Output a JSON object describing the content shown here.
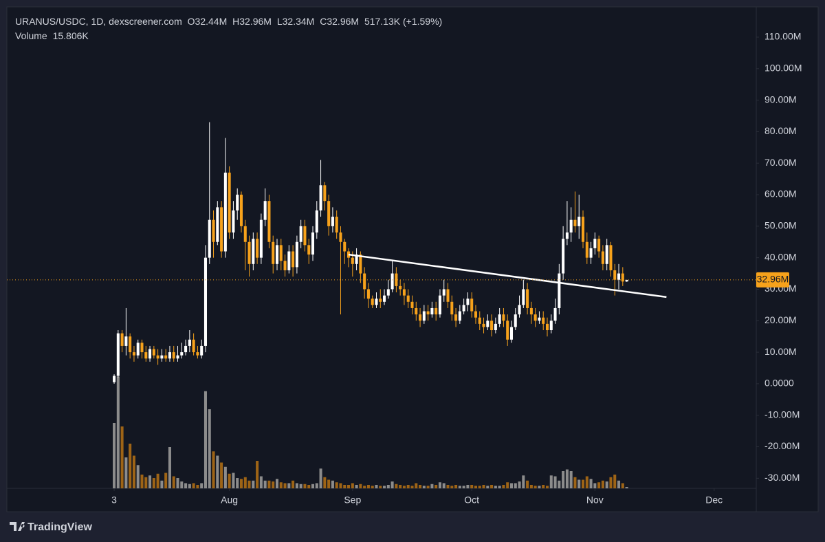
{
  "chart_data": {
    "type": "candlestick",
    "header": {
      "symbol": "URANUS/USDC, 1D, dexscreener.com",
      "o_label": "O",
      "o": "32.44M",
      "h_label": "H",
      "h": "32.96M",
      "l_label": "L",
      "l": "32.34M",
      "c_label": "C",
      "c": "32.96M",
      "change": "517.13K (+1.59%)",
      "volume_label": "Volume",
      "volume": "15.806K"
    },
    "open": [
      0.5,
      2.5,
      16,
      12,
      15,
      10,
      9,
      13,
      10,
      8,
      11,
      9,
      8,
      9,
      8,
      10,
      8,
      9,
      10,
      12,
      14,
      10,
      9,
      12,
      40,
      52,
      45,
      56,
      42,
      67,
      48,
      55,
      60,
      50,
      45,
      38,
      46,
      40,
      52,
      58,
      45,
      38,
      44,
      39,
      36,
      42,
      37,
      45,
      50,
      44,
      41,
      48,
      55,
      63,
      58,
      50,
      53,
      48,
      45,
      42,
      40,
      38,
      41,
      35,
      30,
      27,
      25,
      27,
      26,
      28,
      30,
      35,
      31,
      30,
      28,
      26,
      24,
      22,
      20,
      23,
      22,
      24,
      22,
      28,
      30,
      26,
      22,
      20,
      23,
      25,
      27,
      23,
      21,
      19,
      18,
      20,
      17,
      19,
      22,
      20,
      14,
      18,
      22,
      25,
      30,
      24,
      22,
      20,
      21,
      19,
      17,
      20,
      24,
      35,
      46,
      48,
      52,
      50,
      53,
      45,
      40,
      43,
      46,
      42,
      38,
      44,
      36,
      33,
      35,
      32.44
    ],
    "high": [
      3,
      17,
      17,
      24,
      16,
      12,
      14,
      14,
      12,
      12,
      12,
      11,
      11,
      11,
      12,
      12,
      12,
      13,
      14,
      17,
      16,
      12,
      14,
      44,
      83,
      55,
      58,
      58,
      78,
      69,
      58,
      62,
      61,
      52,
      47,
      48,
      48,
      54,
      62,
      60,
      47,
      46,
      46,
      41,
      44,
      44,
      47,
      52,
      52,
      46,
      50,
      58,
      71,
      64,
      60,
      56,
      55,
      50,
      46,
      43,
      42,
      43,
      42,
      37,
      32,
      28,
      29,
      30,
      30,
      33,
      39,
      37,
      33,
      32,
      30,
      28,
      26,
      24,
      25,
      25,
      26,
      26,
      30,
      33,
      32,
      28,
      24,
      25,
      27,
      29,
      29,
      25,
      23,
      21,
      22,
      22,
      21,
      24,
      24,
      22,
      20,
      24,
      28,
      33,
      32,
      26,
      24,
      23,
      23,
      21,
      22,
      27,
      38,
      50,
      58,
      56,
      61,
      60,
      55,
      48,
      45,
      48,
      47,
      44,
      46,
      45,
      38,
      38,
      37,
      32.96
    ],
    "low": [
      0,
      2,
      10,
      9,
      8,
      7,
      8,
      8,
      7,
      7,
      8,
      6,
      7,
      7,
      7,
      7,
      7,
      8,
      9,
      10,
      9,
      8,
      8,
      10,
      38,
      40,
      44,
      40,
      40,
      46,
      46,
      52,
      48,
      36,
      34,
      36,
      38,
      38,
      50,
      43,
      35,
      36,
      36,
      34,
      35,
      34,
      35,
      43,
      42,
      38,
      39,
      46,
      53,
      55,
      47,
      48,
      46,
      22,
      38,
      37,
      34,
      36,
      32,
      27,
      24,
      24,
      24,
      24,
      25,
      27,
      29,
      29,
      28,
      25,
      24,
      22,
      20,
      18,
      19,
      20,
      21,
      20,
      21,
      26,
      24,
      20,
      18,
      19,
      22,
      23,
      21,
      19,
      17,
      16,
      17,
      15,
      16,
      18,
      18,
      12,
      13,
      17,
      21,
      24,
      22,
      19,
      18,
      19,
      17,
      15,
      16,
      19,
      22,
      33,
      44,
      45,
      48,
      46,
      43,
      38,
      38,
      41,
      40,
      36,
      36,
      34,
      28,
      30,
      31,
      32.34
    ],
    "close": [
      2.5,
      16,
      12,
      15,
      10,
      9,
      13,
      10,
      8,
      11,
      9,
      8,
      9,
      8,
      10,
      8,
      9,
      10,
      12,
      14,
      10,
      9,
      12,
      40,
      52,
      45,
      56,
      42,
      67,
      48,
      55,
      60,
      50,
      45,
      38,
      46,
      40,
      52,
      58,
      45,
      38,
      44,
      39,
      36,
      42,
      37,
      45,
      50,
      44,
      41,
      48,
      55,
      63,
      58,
      50,
      53,
      48,
      45,
      42,
      40,
      38,
      41,
      35,
      30,
      27,
      25,
      27,
      26,
      28,
      30,
      35,
      31,
      30,
      28,
      26,
      24,
      22,
      20,
      23,
      22,
      24,
      22,
      28,
      30,
      26,
      22,
      20,
      23,
      25,
      27,
      23,
      21,
      19,
      18,
      20,
      17,
      19,
      22,
      20,
      14,
      18,
      22,
      25,
      30,
      24,
      22,
      20,
      21,
      19,
      17,
      20,
      24,
      35,
      46,
      48,
      52,
      50,
      53,
      45,
      40,
      43,
      46,
      42,
      38,
      44,
      36,
      33,
      35,
      32.44,
      32.96
    ],
    "volume": [
      760,
      1300,
      720,
      360,
      520,
      380,
      270,
      160,
      130,
      150,
      120,
      170,
      90,
      180,
      480,
      140,
      120,
      80,
      60,
      50,
      60,
      40,
      60,
      1130,
      920,
      430,
      380,
      300,
      250,
      170,
      180,
      120,
      110,
      130,
      90,
      90,
      320,
      140,
      90,
      90,
      80,
      110,
      70,
      60,
      60,
      90,
      60,
      50,
      50,
      40,
      50,
      60,
      230,
      130,
      100,
      90,
      70,
      60,
      40,
      40,
      60,
      40,
      50,
      30,
      40,
      30,
      40,
      30,
      30,
      40,
      80,
      50,
      40,
      30,
      40,
      30,
      60,
      40,
      30,
      30,
      50,
      40,
      70,
      60,
      40,
      30,
      40,
      30,
      30,
      40,
      40,
      30,
      30,
      40,
      30,
      40,
      30,
      30,
      40,
      70,
      60,
      60,
      80,
      150,
      90,
      40,
      30,
      30,
      40,
      30,
      150,
      140,
      90,
      200,
      220,
      200,
      130,
      100,
      100,
      140,
      110,
      60,
      70,
      90,
      80,
      130,
      160,
      90,
      60,
      15.806
    ],
    "up_color": "#ffffff",
    "down_color": "#f7a21b",
    "volume_up_color": "#8c8c8c",
    "volume_down_color": "#9e6416",
    "ylim": [
      -33.2,
      119.6
    ],
    "yticks": [
      {
        "value": 110,
        "label": "110.00M"
      },
      {
        "value": 100,
        "label": "100.00M"
      },
      {
        "value": 90,
        "label": "90.00M"
      },
      {
        "value": 80,
        "label": "80.00M"
      },
      {
        "value": 70,
        "label": "70.00M"
      },
      {
        "value": 60,
        "label": "60.00M"
      },
      {
        "value": 50,
        "label": "50.00M"
      },
      {
        "value": 40,
        "label": "40.00M"
      },
      {
        "value": 30,
        "label": "30.00M"
      },
      {
        "value": 20,
        "label": "20.00M"
      },
      {
        "value": 10,
        "label": "10.00M"
      },
      {
        "value": 0,
        "label": "0.0000"
      },
      {
        "value": -10,
        "label": "-10.00M"
      },
      {
        "value": -20,
        "label": "-20.00M"
      },
      {
        "value": -30,
        "label": "-30.00M"
      }
    ],
    "volume_lim": [
      0,
      1400
    ],
    "xlim": [
      -27,
      161.6
    ],
    "xticks": [
      {
        "value": 0,
        "label": "3"
      },
      {
        "value": 29,
        "label": "Aug"
      },
      {
        "value": 60,
        "label": "Sep"
      },
      {
        "value": 90,
        "label": "Oct"
      },
      {
        "value": 121,
        "label": "Nov"
      },
      {
        "value": 151,
        "label": "Dec"
      }
    ],
    "last_price": {
      "value": 32.96,
      "label": "32.96M"
    },
    "trendline": {
      "x": [
        59,
        139
      ],
      "y": [
        41,
        27.5
      ],
      "color": "#ffffff"
    },
    "branding": "TradingView"
  }
}
